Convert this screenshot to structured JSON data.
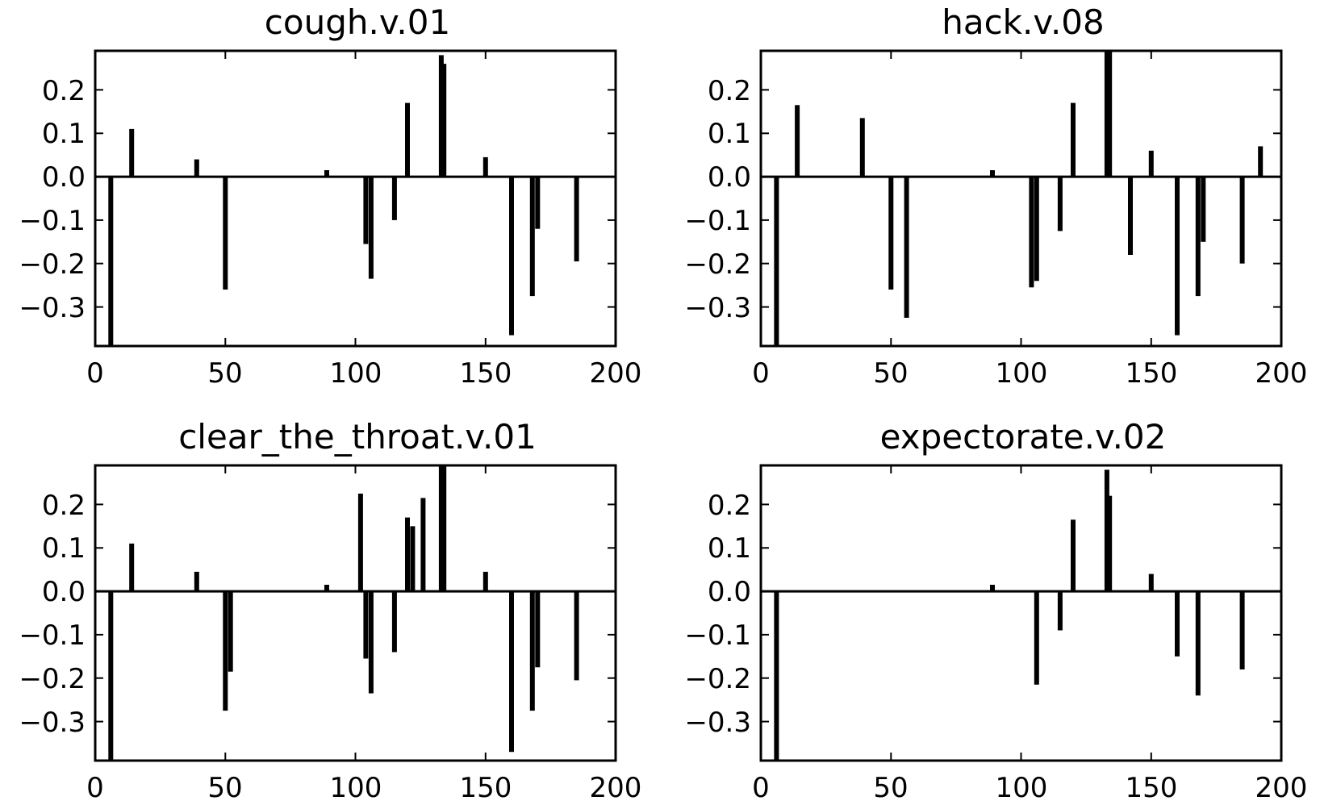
{
  "colors": {
    "bar": "#000000",
    "axes": "#000000",
    "background": "#ffffff"
  },
  "chart_data": [
    {
      "type": "bar",
      "title": "cough.v.01",
      "xlabel": "",
      "ylabel": "",
      "xlim": [
        0,
        200
      ],
      "ylim": [
        -0.39,
        0.29
      ],
      "xticks": [
        "0",
        "50",
        "100",
        "150",
        "200"
      ],
      "yticks": [
        "0.2",
        "0.1",
        "0.0",
        "−0.1",
        "−0.2",
        "−0.3"
      ],
      "grid": false,
      "x": [
        6,
        14,
        39,
        50,
        89,
        104,
        106,
        115,
        120,
        133,
        134,
        150,
        160,
        168,
        170,
        185
      ],
      "values": [
        -0.39,
        0.11,
        0.04,
        -0.26,
        0.015,
        -0.155,
        -0.235,
        -0.1,
        0.17,
        0.28,
        0.26,
        0.045,
        -0.365,
        -0.275,
        -0.12,
        -0.195
      ]
    },
    {
      "type": "bar",
      "title": "hack.v.08",
      "xlabel": "",
      "ylabel": "",
      "xlim": [
        0,
        200
      ],
      "ylim": [
        -0.39,
        0.29
      ],
      "xticks": [
        "0",
        "50",
        "100",
        "150",
        "200"
      ],
      "yticks": [
        "0.2",
        "0.1",
        "0.0",
        "−0.1",
        "−0.2",
        "−0.3"
      ],
      "grid": false,
      "x": [
        6,
        14,
        39,
        50,
        56,
        89,
        104,
        106,
        115,
        120,
        133,
        134,
        142,
        150,
        160,
        168,
        170,
        185,
        192
      ],
      "values": [
        -0.39,
        0.165,
        0.135,
        -0.26,
        -0.325,
        0.015,
        -0.255,
        -0.24,
        -0.125,
        0.17,
        0.29,
        0.29,
        -0.18,
        0.06,
        -0.365,
        -0.275,
        -0.15,
        -0.2,
        0.07
      ]
    },
    {
      "type": "bar",
      "title": "clear_the_throat.v.01",
      "xlabel": "",
      "ylabel": "",
      "xlim": [
        0,
        200
      ],
      "ylim": [
        -0.39,
        0.29
      ],
      "xticks": [
        "0",
        "50",
        "100",
        "150",
        "200"
      ],
      "yticks": [
        "0.2",
        "0.1",
        "0.0",
        "−0.1",
        "−0.2",
        "−0.3"
      ],
      "grid": false,
      "x": [
        6,
        14,
        39,
        50,
        52,
        89,
        102,
        104,
        106,
        115,
        120,
        122,
        126,
        133,
        134,
        150,
        160,
        168,
        170,
        185
      ],
      "values": [
        -0.39,
        0.11,
        0.045,
        -0.275,
        -0.185,
        0.015,
        0.225,
        -0.155,
        -0.235,
        -0.14,
        0.17,
        0.15,
        0.215,
        0.29,
        0.29,
        0.045,
        -0.37,
        -0.275,
        -0.175,
        -0.205
      ]
    },
    {
      "type": "bar",
      "title": "expectorate.v.02",
      "xlabel": "",
      "ylabel": "",
      "xlim": [
        0,
        200
      ],
      "ylim": [
        -0.39,
        0.29
      ],
      "xticks": [
        "0",
        "50",
        "100",
        "150",
        "200"
      ],
      "yticks": [
        "0.2",
        "0.1",
        "0.0",
        "−0.1",
        "−0.2",
        "−0.3"
      ],
      "grid": false,
      "x": [
        6,
        89,
        106,
        115,
        120,
        133,
        134,
        150,
        160,
        168,
        185
      ],
      "values": [
        -0.39,
        0.015,
        -0.215,
        -0.09,
        0.165,
        0.28,
        0.22,
        0.04,
        -0.15,
        -0.24,
        -0.18
      ]
    }
  ]
}
